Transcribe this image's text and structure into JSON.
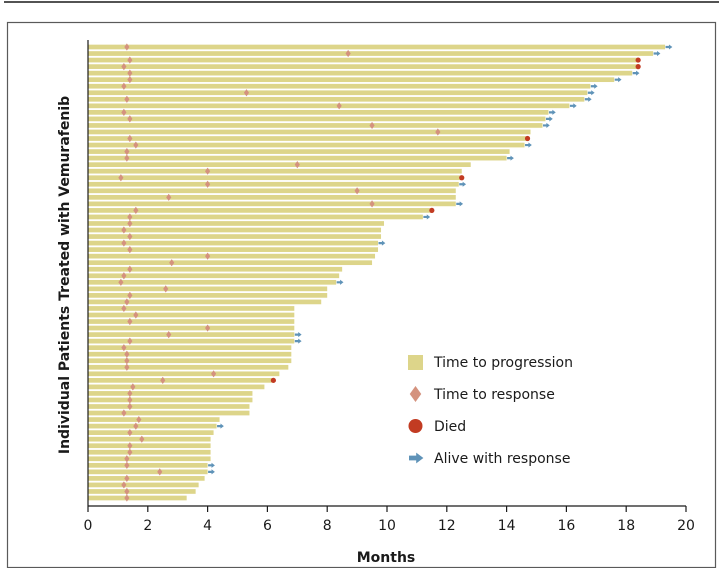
{
  "chart_data": {
    "type": "bar",
    "orientation": "horizontal",
    "title": "",
    "xlabel": "Months",
    "ylabel": "Individual Patients Treated with Vemurafenib",
    "xlim": [
      0,
      20
    ],
    "xticks": [
      0,
      2,
      4,
      6,
      8,
      10,
      12,
      14,
      16,
      18,
      20
    ],
    "grid": false,
    "legend": {
      "placement": "lower-right",
      "entries": [
        {
          "key": "progression",
          "label": "Time to progression",
          "color": "#ddd58a"
        },
        {
          "key": "response",
          "label": "Time to response",
          "color": "#d4927e"
        },
        {
          "key": "died",
          "label": "Died",
          "color": "#c23b22"
        },
        {
          "key": "alive",
          "label": "Alive with response",
          "color": "#5f93b8"
        }
      ]
    },
    "colors": {
      "bar": "#ddd58a",
      "response": "#d4927e",
      "died": "#c23b22",
      "alive": "#5f93b8",
      "axis": "#1a1a1a",
      "frame": "#5a5a5a"
    },
    "patients": [
      {
        "progression": 19.3,
        "response": 1.3,
        "end": "alive"
      },
      {
        "progression": 18.9,
        "response": 8.7,
        "end": "alive"
      },
      {
        "progression": 18.4,
        "response": 1.4,
        "end": "died"
      },
      {
        "progression": 18.4,
        "response": 1.2,
        "end": "died"
      },
      {
        "progression": 18.2,
        "response": 1.4,
        "end": "alive"
      },
      {
        "progression": 17.6,
        "response": 1.4,
        "end": "alive"
      },
      {
        "progression": 16.8,
        "response": 1.2,
        "end": "alive"
      },
      {
        "progression": 16.7,
        "response": 5.3,
        "end": "alive"
      },
      {
        "progression": 16.6,
        "response": 1.3,
        "end": "alive"
      },
      {
        "progression": 16.1,
        "response": 8.4,
        "end": "alive"
      },
      {
        "progression": 15.4,
        "response": 1.2,
        "end": "alive"
      },
      {
        "progression": 15.3,
        "response": 1.4,
        "end": "alive"
      },
      {
        "progression": 15.2,
        "response": 9.5,
        "end": "alive"
      },
      {
        "progression": 14.8,
        "response": 11.7,
        "end": null
      },
      {
        "progression": 14.7,
        "response": 1.4,
        "end": "died"
      },
      {
        "progression": 14.6,
        "response": 1.6,
        "end": "alive"
      },
      {
        "progression": 14.1,
        "response": 1.3,
        "end": null
      },
      {
        "progression": 14.0,
        "response": 1.3,
        "end": "alive"
      },
      {
        "progression": 12.8,
        "response": 7.0,
        "end": null
      },
      {
        "progression": 12.5,
        "response": 4.0,
        "end": null
      },
      {
        "progression": 12.5,
        "response": 1.1,
        "end": "died"
      },
      {
        "progression": 12.4,
        "response": 4.0,
        "end": "alive"
      },
      {
        "progression": 12.3,
        "response": 9.0,
        "end": null
      },
      {
        "progression": 12.3,
        "response": 2.7,
        "end": null
      },
      {
        "progression": 12.3,
        "response": 9.5,
        "end": "alive"
      },
      {
        "progression": 11.5,
        "response": 1.6,
        "end": "died"
      },
      {
        "progression": 11.2,
        "response": 1.4,
        "end": "alive"
      },
      {
        "progression": 9.9,
        "response": 1.4,
        "end": null
      },
      {
        "progression": 9.8,
        "response": 1.2,
        "end": null
      },
      {
        "progression": 9.8,
        "response": 1.4,
        "end": null
      },
      {
        "progression": 9.7,
        "response": 1.2,
        "end": "alive"
      },
      {
        "progression": 9.7,
        "response": 1.4,
        "end": null
      },
      {
        "progression": 9.6,
        "response": 4.0,
        "end": null
      },
      {
        "progression": 9.5,
        "response": 2.8,
        "end": null
      },
      {
        "progression": 8.5,
        "response": 1.4,
        "end": null
      },
      {
        "progression": 8.4,
        "response": 1.2,
        "end": null
      },
      {
        "progression": 8.3,
        "response": 1.1,
        "end": "alive"
      },
      {
        "progression": 8.0,
        "response": 2.6,
        "end": null
      },
      {
        "progression": 8.0,
        "response": 1.4,
        "end": null
      },
      {
        "progression": 7.8,
        "response": 1.3,
        "end": null
      },
      {
        "progression": 6.9,
        "response": 1.2,
        "end": null
      },
      {
        "progression": 6.9,
        "response": 1.6,
        "end": null
      },
      {
        "progression": 6.9,
        "response": 1.4,
        "end": null
      },
      {
        "progression": 6.9,
        "response": 4.0,
        "end": null
      },
      {
        "progression": 6.9,
        "response": 2.7,
        "end": "alive"
      },
      {
        "progression": 6.9,
        "response": 1.4,
        "end": "alive"
      },
      {
        "progression": 6.8,
        "response": 1.2,
        "end": null
      },
      {
        "progression": 6.8,
        "response": 1.3,
        "end": null
      },
      {
        "progression": 6.8,
        "response": 1.3,
        "end": null
      },
      {
        "progression": 6.7,
        "response": 1.3,
        "end": null
      },
      {
        "progression": 6.4,
        "response": 4.2,
        "end": null
      },
      {
        "progression": 6.2,
        "response": 2.5,
        "end": "died"
      },
      {
        "progression": 5.9,
        "response": 1.5,
        "end": null
      },
      {
        "progression": 5.5,
        "response": 1.4,
        "end": null
      },
      {
        "progression": 5.5,
        "response": 1.4,
        "end": null
      },
      {
        "progression": 5.4,
        "response": 1.4,
        "end": null
      },
      {
        "progression": 5.4,
        "response": 1.2,
        "end": null
      },
      {
        "progression": 4.4,
        "response": 1.7,
        "end": null
      },
      {
        "progression": 4.3,
        "response": 1.6,
        "end": "alive"
      },
      {
        "progression": 4.2,
        "response": 1.4,
        "end": null
      },
      {
        "progression": 4.1,
        "response": 1.8,
        "end": null
      },
      {
        "progression": 4.1,
        "response": 1.4,
        "end": null
      },
      {
        "progression": 4.1,
        "response": 1.4,
        "end": null
      },
      {
        "progression": 4.1,
        "response": 1.3,
        "end": null
      },
      {
        "progression": 4.0,
        "response": 1.3,
        "end": "alive"
      },
      {
        "progression": 4.0,
        "response": 2.4,
        "end": "alive"
      },
      {
        "progression": 3.9,
        "response": 1.3,
        "end": null
      },
      {
        "progression": 3.7,
        "response": 1.2,
        "end": null
      },
      {
        "progression": 3.6,
        "response": 1.3,
        "end": null
      },
      {
        "progression": 3.3,
        "response": 1.3,
        "end": null
      }
    ]
  }
}
